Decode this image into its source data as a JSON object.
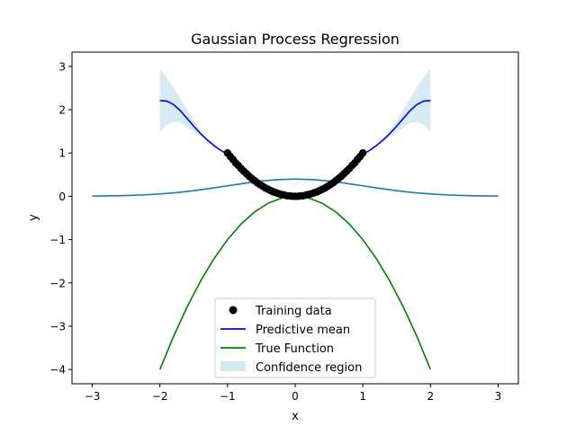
{
  "chart_data": {
    "type": "line",
    "title": "Gaussian Process Regression",
    "xlabel": "x",
    "ylabel": "y",
    "xlim": [
      -3.3,
      3.3
    ],
    "ylim": [
      -4.33,
      3.33
    ],
    "xticks": [
      -3,
      -2,
      -1,
      0,
      1,
      2,
      3
    ],
    "yticks": [
      -4,
      -3,
      -2,
      -1,
      0,
      1,
      2,
      3
    ],
    "xtick_labels": [
      "−3",
      "−2",
      "−1",
      "0",
      "1",
      "2",
      "3"
    ],
    "ytick_labels": [
      "−4",
      "−3",
      "−2",
      "−1",
      "0",
      "1",
      "2",
      "3"
    ],
    "grid": false,
    "legend_position": "lower center",
    "legend": [
      {
        "label": "Training data",
        "kind": "marker",
        "color": "#000000"
      },
      {
        "label": "Predictive mean",
        "kind": "line",
        "color": "#0000ff"
      },
      {
        "label": "True Function",
        "kind": "line",
        "color": "#008000"
      },
      {
        "label": "Confidence region",
        "kind": "patch",
        "color": "#add8e6"
      }
    ],
    "series": [
      {
        "name": "Training data",
        "kind": "scatter",
        "color": "#000000",
        "x": [
          -1.0,
          -0.96,
          -0.92,
          -0.88,
          -0.84,
          -0.8,
          -0.76,
          -0.72,
          -0.68,
          -0.64,
          -0.6,
          -0.56,
          -0.52,
          -0.48,
          -0.44,
          -0.4,
          -0.36,
          -0.32,
          -0.28,
          -0.24,
          -0.2,
          -0.16,
          -0.12,
          -0.08,
          -0.04,
          0.0,
          0.04,
          0.08,
          0.12,
          0.16,
          0.2,
          0.24,
          0.28,
          0.32,
          0.36,
          0.4,
          0.44,
          0.48,
          0.52,
          0.56,
          0.6,
          0.64,
          0.68,
          0.72,
          0.76,
          0.8,
          0.84,
          0.88,
          0.92,
          0.96,
          1.0
        ],
        "y": [
          1.0,
          0.92,
          0.85,
          0.77,
          0.71,
          0.64,
          0.58,
          0.52,
          0.46,
          0.41,
          0.36,
          0.31,
          0.27,
          0.23,
          0.19,
          0.16,
          0.13,
          0.1,
          0.08,
          0.06,
          0.04,
          0.03,
          0.01,
          0.01,
          0.0,
          0.0,
          0.0,
          0.01,
          0.01,
          0.03,
          0.04,
          0.06,
          0.08,
          0.1,
          0.13,
          0.16,
          0.19,
          0.23,
          0.27,
          0.31,
          0.36,
          0.41,
          0.46,
          0.52,
          0.58,
          0.64,
          0.71,
          0.77,
          0.85,
          0.92,
          1.0
        ]
      },
      {
        "name": "Predictive mean",
        "kind": "line",
        "color": "#0000ff",
        "x": [
          -2.0,
          -1.9,
          -1.8,
          -1.7,
          -1.6,
          -1.5,
          -1.4,
          -1.3,
          -1.2,
          -1.1,
          -1.0,
          -0.8,
          -0.6,
          -0.4,
          -0.2,
          0.0,
          0.2,
          0.4,
          0.6,
          0.8,
          1.0,
          1.1,
          1.2,
          1.3,
          1.4,
          1.5,
          1.6,
          1.7,
          1.8,
          1.9,
          2.0
        ],
        "y": [
          2.21,
          2.2,
          2.12,
          1.98,
          1.8,
          1.62,
          1.45,
          1.3,
          1.17,
          1.06,
          0.97,
          0.64,
          0.36,
          0.16,
          0.04,
          0.0,
          0.04,
          0.16,
          0.36,
          0.64,
          0.97,
          1.06,
          1.17,
          1.3,
          1.45,
          1.62,
          1.8,
          1.98,
          2.12,
          2.2,
          2.21
        ]
      },
      {
        "name": "True Function",
        "kind": "line",
        "color": "#008000",
        "x": [
          -2.0,
          -1.8,
          -1.6,
          -1.4,
          -1.2,
          -1.0,
          -0.8,
          -0.6,
          -0.4,
          -0.2,
          0.0,
          0.2,
          0.4,
          0.6,
          0.8,
          1.0,
          1.2,
          1.4,
          1.6,
          1.8,
          2.0
        ],
        "y": [
          -4.0,
          -3.24,
          -2.56,
          -1.96,
          -1.44,
          -1.0,
          -0.64,
          -0.36,
          -0.16,
          -0.04,
          0.0,
          -0.04,
          -0.16,
          -0.36,
          -0.64,
          -1.0,
          -1.44,
          -1.96,
          -2.56,
          -3.24,
          -4.0
        ]
      },
      {
        "kind": "line",
        "color": "#1f77b4",
        "x": [
          -3.0,
          -2.75,
          -2.5,
          -2.25,
          -2.0,
          -1.75,
          -1.5,
          -1.25,
          -1.0,
          -0.75,
          -0.5,
          -0.25,
          0.0,
          0.25,
          0.5,
          0.75,
          1.0,
          1.25,
          1.5,
          1.75,
          2.0,
          2.25,
          2.5,
          2.75,
          3.0
        ],
        "y": [
          0.004,
          0.009,
          0.018,
          0.032,
          0.054,
          0.086,
          0.13,
          0.183,
          0.242,
          0.301,
          0.352,
          0.387,
          0.399,
          0.387,
          0.352,
          0.301,
          0.242,
          0.183,
          0.13,
          0.086,
          0.054,
          0.032,
          0.018,
          0.009,
          0.004
        ]
      }
    ],
    "confidence_region": {
      "name": "Confidence region",
      "color": "#add8e6",
      "x": [
        -2.0,
        -1.9,
        -1.8,
        -1.7,
        -1.6,
        -1.5,
        -1.4,
        -1.3,
        -1.2,
        -1.1,
        -1.0,
        -0.8,
        -0.6,
        -0.4,
        -0.2,
        0.0,
        0.2,
        0.4,
        0.6,
        0.8,
        1.0,
        1.1,
        1.2,
        1.3,
        1.4,
        1.5,
        1.6,
        1.7,
        1.8,
        1.9,
        2.0
      ],
      "lower": [
        1.47,
        1.66,
        1.72,
        1.7,
        1.6,
        1.5,
        1.39,
        1.27,
        1.15,
        1.05,
        0.96,
        0.63,
        0.35,
        0.15,
        0.03,
        -0.01,
        0.03,
        0.15,
        0.35,
        0.63,
        0.96,
        1.05,
        1.15,
        1.27,
        1.39,
        1.5,
        1.6,
        1.7,
        1.72,
        1.66,
        1.47
      ],
      "upper": [
        2.95,
        2.74,
        2.52,
        2.26,
        2.0,
        1.74,
        1.51,
        1.33,
        1.19,
        1.07,
        0.98,
        0.65,
        0.37,
        0.17,
        0.05,
        0.01,
        0.05,
        0.17,
        0.37,
        0.65,
        0.98,
        1.07,
        1.19,
        1.33,
        1.51,
        1.74,
        2.0,
        2.26,
        2.52,
        2.74,
        2.95
      ]
    }
  }
}
